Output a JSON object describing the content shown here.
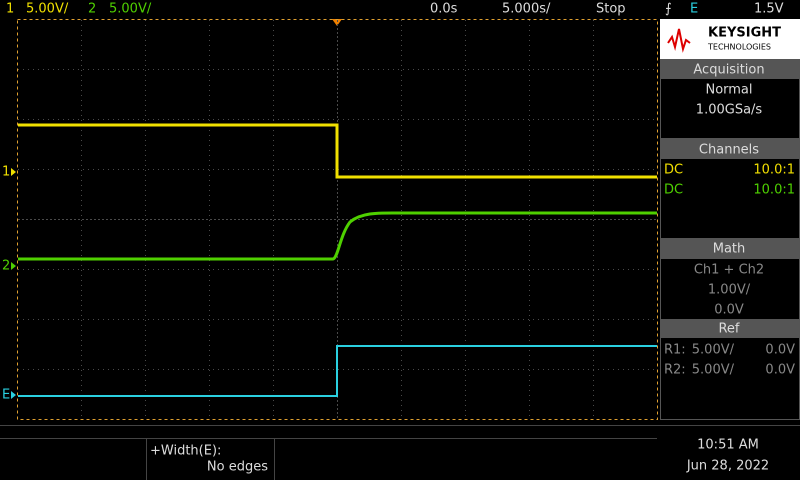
{
  "top_bar": {
    "ch1_label": "1",
    "ch1_scale": "5.00V/",
    "ch2_label": "2",
    "ch2_scale": "5.00V/",
    "time_offset": "0.0s",
    "time_scale": "5.000s/",
    "run_state": "Stop",
    "trigger_source": "E",
    "trigger_level": "1.5V"
  },
  "markers": {
    "ch1": "1",
    "ch2": "2",
    "ext": "E"
  },
  "logo": {
    "brand": "KEYSIGHT",
    "sub": "TECHNOLOGIES"
  },
  "acquisition": {
    "title": "Acquisition",
    "mode": "Normal",
    "rate": "1.00GSa/s"
  },
  "channels": {
    "title": "Channels",
    "rows": [
      {
        "coupling": "DC",
        "probe": "10.0:1"
      },
      {
        "coupling": "DC",
        "probe": "10.0:1"
      }
    ]
  },
  "math": {
    "title": "Math",
    "function": "Ch1 + Ch2",
    "scale": "1.00V/",
    "offset": "0.0V"
  },
  "ref": {
    "title": "Ref",
    "rows": [
      {
        "name": "R1:",
        "scale": "5.00V/",
        "offset": "0.0V"
      },
      {
        "name": "R2:",
        "scale": "5.00V/",
        "offset": "0.0V"
      }
    ]
  },
  "measurement": {
    "label": "+Width(E):",
    "value": "No edges"
  },
  "clock": {
    "time": "10:51 AM",
    "date": "Jun 28, 2022"
  }
}
